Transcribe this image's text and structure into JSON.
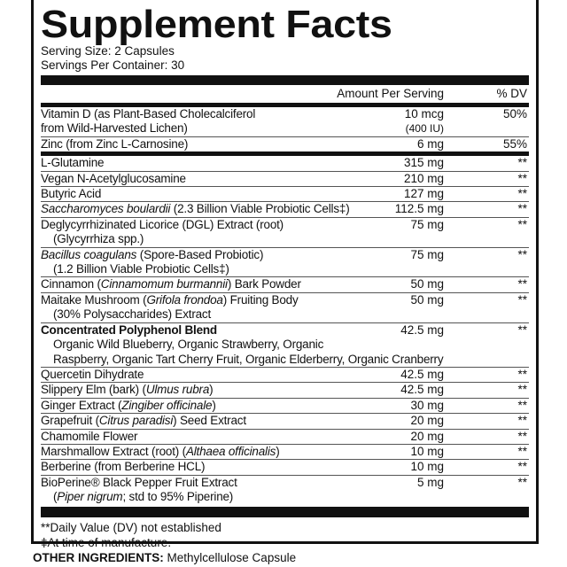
{
  "title": "Supplement Facts",
  "serving_size": "Serving Size: 2 Capsules",
  "servings_per_container": "Servings Per Container: 30",
  "header": {
    "amount": "Amount Per Serving",
    "dv": "% DV"
  },
  "vitamins": [
    {
      "lines": [
        [
          {
            "t": "Vitamin D (as Plant-Based Cholecalciferol"
          }
        ],
        [
          {
            "t": "from Wild-Harvested Lichen)"
          }
        ]
      ],
      "amount": "10 mcg",
      "amount2": "(400 IU)",
      "dv": "50%"
    },
    {
      "lines": [
        [
          {
            "t": "Zinc (from Zinc L-Carnosine)"
          }
        ]
      ],
      "amount": "6 mg",
      "dv": "55%"
    }
  ],
  "ingredients": [
    {
      "lines": [
        [
          {
            "t": "L-Glutamine"
          }
        ]
      ],
      "amount": "315 mg",
      "dv": "**"
    },
    {
      "lines": [
        [
          {
            "t": "Vegan N-Acetylglucosamine"
          }
        ]
      ],
      "amount": "210 mg",
      "dv": "**"
    },
    {
      "lines": [
        [
          {
            "t": "Butyric Acid"
          }
        ]
      ],
      "amount": "127 mg",
      "dv": "**"
    },
    {
      "lines": [
        [
          {
            "t": "Saccharomyces boulardii",
            "i": true
          },
          {
            "t": " (2.3 Billion Viable Probiotic Cells‡)"
          }
        ]
      ],
      "amount": "112.5 mg",
      "dv": "**"
    },
    {
      "lines": [
        [
          {
            "t": "Deglycyrrhizinated Licorice (DGL) Extract (root)"
          }
        ],
        [
          {
            "t": "(Glycyrrhiza spp.)",
            "sub": true
          }
        ]
      ],
      "amount": "75 mg",
      "dv": "**"
    },
    {
      "lines": [
        [
          {
            "t": "Bacillus coagulans",
            "i": true
          },
          {
            "t": " (Spore-Based Probiotic)"
          }
        ],
        [
          {
            "t": "(1.2 Billion Viable Probiotic Cells‡)",
            "sub": true
          }
        ]
      ],
      "amount": "75 mg",
      "dv": "**"
    },
    {
      "lines": [
        [
          {
            "t": "Cinnamon ("
          },
          {
            "t": "Cinnamomum burmannii",
            "i": true
          },
          {
            "t": ") Bark Powder"
          }
        ]
      ],
      "amount": "50 mg",
      "dv": "**"
    },
    {
      "lines": [
        [
          {
            "t": "Maitake Mushroom ("
          },
          {
            "t": "Grifola frondoa",
            "i": true
          },
          {
            "t": ") Fruiting Body"
          }
        ],
        [
          {
            "t": "(30% Polysaccharides) Extract",
            "sub": true
          }
        ]
      ],
      "amount": "50 mg",
      "dv": "**"
    },
    {
      "lines": [
        [
          {
            "t": "Concentrated Polyphenol Blend",
            "b": true
          }
        ],
        [
          {
            "t": "Organic Wild Blueberry, Organic Strawberry, Organic",
            "sub": true
          }
        ],
        [
          {
            "t": "Raspberry, Organic Tart Cherry Fruit, Organic Elderberry, Organic Cranberry",
            "sub": true
          }
        ]
      ],
      "amount": "42.5 mg",
      "dv": "**"
    },
    {
      "lines": [
        [
          {
            "t": "Quercetin Dihydrate"
          }
        ]
      ],
      "amount": "42.5 mg",
      "dv": "**"
    },
    {
      "lines": [
        [
          {
            "t": "Slippery Elm (bark) ("
          },
          {
            "t": "Ulmus rubra",
            "i": true
          },
          {
            "t": ")"
          }
        ]
      ],
      "amount": "42.5 mg",
      "dv": "**"
    },
    {
      "lines": [
        [
          {
            "t": "Ginger Extract ("
          },
          {
            "t": "Zingiber officinale",
            "i": true
          },
          {
            "t": ")"
          }
        ]
      ],
      "amount": "30 mg",
      "dv": "**"
    },
    {
      "lines": [
        [
          {
            "t": "Grapefruit ("
          },
          {
            "t": "Citrus paradisi",
            "i": true
          },
          {
            "t": ") Seed Extract"
          }
        ]
      ],
      "amount": "20 mg",
      "dv": "**"
    },
    {
      "lines": [
        [
          {
            "t": "Chamomile Flower"
          }
        ]
      ],
      "amount": "20 mg",
      "dv": "**"
    },
    {
      "lines": [
        [
          {
            "t": "Marshmallow Extract (root) ("
          },
          {
            "t": "Althaea officinalis",
            "i": true
          },
          {
            "t": ")"
          }
        ]
      ],
      "amount": "10 mg",
      "dv": "**"
    },
    {
      "lines": [
        [
          {
            "t": "Berberine (from Berberine HCL)"
          }
        ]
      ],
      "amount": "10 mg",
      "dv": "**"
    },
    {
      "lines": [
        [
          {
            "t": "BioPerine® Black Pepper Fruit Extract"
          }
        ],
        [
          {
            "t": "(",
            "sub": true
          },
          {
            "t": "Piper nigrum",
            "i": true
          },
          {
            "t": "; std to 95% Piperine)"
          }
        ]
      ],
      "amount": "5 mg",
      "dv": "**"
    }
  ],
  "footnotes": [
    "**Daily Value (DV) not established",
    "‡At time of manufacture."
  ],
  "other": {
    "label": "OTHER INGREDIENTS:",
    "value": " Methylcellulose Capsule"
  }
}
